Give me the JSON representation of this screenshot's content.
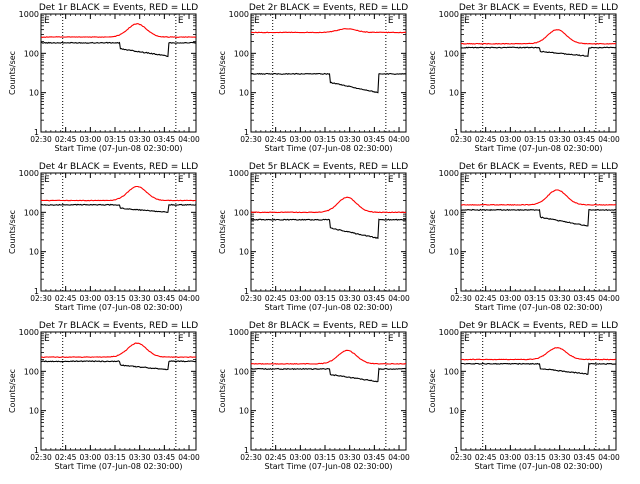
{
  "chart_data": [
    {
      "type": "line",
      "title": "Det 1r BLACK = Events, RED = LLD",
      "xlabel": "Start Time (07-Jun-08 02:30:00)",
      "ylabel": "Counts/sec",
      "xlim": [
        0,
        100
      ],
      "ylim": [
        1,
        1000
      ],
      "yscale": "log",
      "tick_labels": [
        "02:30",
        "02:45",
        "03:00",
        "03:15",
        "03:30",
        "03:45",
        "04:00"
      ],
      "y_tick_labels": [
        "1",
        "10",
        "100",
        "1000"
      ],
      "markers": [
        "E",
        "E"
      ],
      "series": [
        {
          "name": "LLD",
          "color": "#ff0000",
          "base": 260,
          "peak": 560
        },
        {
          "name": "Events",
          "color": "#000000",
          "base": 185,
          "dip": 85
        }
      ]
    },
    {
      "type": "line",
      "title": "Det 2r BLACK = Events, RED = LLD",
      "xlabel": "Start Time (07-Jun-08 02:30:00)",
      "ylabel": "Counts/sec",
      "xlim": [
        0,
        100
      ],
      "ylim": [
        1,
        1000
      ],
      "yscale": "log",
      "tick_labels": [
        "02:30",
        "02:45",
        "03:00",
        "03:15",
        "03:30",
        "03:45",
        "04:00"
      ],
      "y_tick_labels": [
        "1",
        "10",
        "100",
        "1000"
      ],
      "markers": [
        "E",
        "E"
      ],
      "series": [
        {
          "name": "LLD",
          "color": "#ff0000",
          "base": 340,
          "peak": 420
        },
        {
          "name": "Events",
          "color": "#000000",
          "base": 30,
          "dip": 10
        }
      ]
    },
    {
      "type": "line",
      "title": "Det 3r BLACK = Events, RED = LLD",
      "xlabel": "Start Time (07-Jun-08 02:30:00)",
      "ylabel": "Counts/sec",
      "xlim": [
        0,
        100
      ],
      "ylim": [
        1,
        1000
      ],
      "yscale": "log",
      "tick_labels": [
        "02:30",
        "02:45",
        "03:00",
        "03:15",
        "03:30",
        "03:45",
        "04:00"
      ],
      "y_tick_labels": [
        "1",
        "10",
        "100",
        "1000"
      ],
      "markers": [
        "E",
        "E"
      ],
      "series": [
        {
          "name": "LLD",
          "color": "#ff0000",
          "base": 175,
          "peak": 400
        },
        {
          "name": "Events",
          "color": "#000000",
          "base": 140,
          "dip": 85
        }
      ]
    },
    {
      "type": "line",
      "title": "Det 4r BLACK = Events, RED = LLD",
      "xlabel": "Start Time (07-Jun-08 02:30:00)",
      "ylabel": "Counts/sec",
      "xlim": [
        0,
        100
      ],
      "ylim": [
        1,
        1000
      ],
      "yscale": "log",
      "tick_labels": [
        "02:30",
        "02:45",
        "03:00",
        "03:15",
        "03:30",
        "03:45",
        "04:00"
      ],
      "y_tick_labels": [
        "1",
        "10",
        "100",
        "1000"
      ],
      "markers": [
        "E",
        "E"
      ],
      "series": [
        {
          "name": "LLD",
          "color": "#ff0000",
          "base": 200,
          "peak": 450
        },
        {
          "name": "Events",
          "color": "#000000",
          "base": 155,
          "dip": 100
        }
      ]
    },
    {
      "type": "line",
      "title": "Det 5r BLACK = Events, RED = LLD",
      "xlabel": "Start Time (07-Jun-08 02:30:00)",
      "ylabel": "Counts/sec",
      "xlim": [
        0,
        100
      ],
      "ylim": [
        1,
        1000
      ],
      "yscale": "log",
      "tick_labels": [
        "02:30",
        "02:45",
        "03:00",
        "03:15",
        "03:30",
        "03:45",
        "04:00"
      ],
      "y_tick_labels": [
        "1",
        "10",
        "100",
        "1000"
      ],
      "markers": [
        "E",
        "E"
      ],
      "series": [
        {
          "name": "LLD",
          "color": "#ff0000",
          "base": 100,
          "peak": 240
        },
        {
          "name": "Events",
          "color": "#000000",
          "base": 65,
          "dip": 22
        }
      ]
    },
    {
      "type": "line",
      "title": "Det 6r BLACK = Events, RED = LLD",
      "xlabel": "Start Time (07-Jun-08 02:30:00)",
      "ylabel": "Counts/sec",
      "xlim": [
        0,
        100
      ],
      "ylim": [
        1,
        1000
      ],
      "yscale": "log",
      "tick_labels": [
        "02:30",
        "02:45",
        "03:00",
        "03:15",
        "03:30",
        "03:45",
        "04:00"
      ],
      "y_tick_labels": [
        "1",
        "10",
        "100",
        "1000"
      ],
      "markers": [
        "E",
        "E"
      ],
      "series": [
        {
          "name": "LLD",
          "color": "#ff0000",
          "base": 155,
          "peak": 370
        },
        {
          "name": "Events",
          "color": "#000000",
          "base": 115,
          "dip": 45
        }
      ]
    },
    {
      "type": "line",
      "title": "Det 7r BLACK = Events, RED = LLD",
      "xlabel": "Start Time (07-Jun-08 02:30:00)",
      "ylabel": "Counts/sec",
      "xlim": [
        0,
        100
      ],
      "ylim": [
        1,
        1000
      ],
      "yscale": "log",
      "tick_labels": [
        "02:30",
        "02:45",
        "03:00",
        "03:15",
        "03:30",
        "03:45",
        "04:00"
      ],
      "y_tick_labels": [
        "1",
        "10",
        "100",
        "1000"
      ],
      "markers": [
        "E",
        "E"
      ],
      "series": [
        {
          "name": "LLD",
          "color": "#ff0000",
          "base": 230,
          "peak": 520
        },
        {
          "name": "Events",
          "color": "#000000",
          "base": 180,
          "dip": 110
        }
      ]
    },
    {
      "type": "line",
      "title": "Det 8r BLACK = Events, RED = LLD",
      "xlabel": "Start Time (07-Jun-08 02:30:00)",
      "ylabel": "Counts/sec",
      "xlim": [
        0,
        100
      ],
      "ylim": [
        1,
        1000
      ],
      "yscale": "log",
      "tick_labels": [
        "02:30",
        "02:45",
        "03:00",
        "03:15",
        "03:30",
        "03:45",
        "04:00"
      ],
      "y_tick_labels": [
        "1",
        "10",
        "100",
        "1000"
      ],
      "markers": [
        "E",
        "E"
      ],
      "series": [
        {
          "name": "LLD",
          "color": "#ff0000",
          "base": 155,
          "peak": 340
        },
        {
          "name": "Events",
          "color": "#000000",
          "base": 115,
          "dip": 55
        }
      ]
    },
    {
      "type": "line",
      "title": "Det 9r BLACK = Events, RED = LLD",
      "xlabel": "Start Time (07-Jun-08 02:30:00)",
      "ylabel": "Counts/sec",
      "xlim": [
        0,
        100
      ],
      "ylim": [
        1,
        1000
      ],
      "yscale": "log",
      "tick_labels": [
        "02:30",
        "02:45",
        "03:00",
        "03:15",
        "03:30",
        "03:45",
        "04:00"
      ],
      "y_tick_labels": [
        "1",
        "10",
        "100",
        "1000"
      ],
      "markers": [
        "E",
        "E"
      ],
      "series": [
        {
          "name": "LLD",
          "color": "#ff0000",
          "base": 200,
          "peak": 400
        },
        {
          "name": "Events",
          "color": "#000000",
          "base": 155,
          "dip": 85
        }
      ]
    }
  ]
}
